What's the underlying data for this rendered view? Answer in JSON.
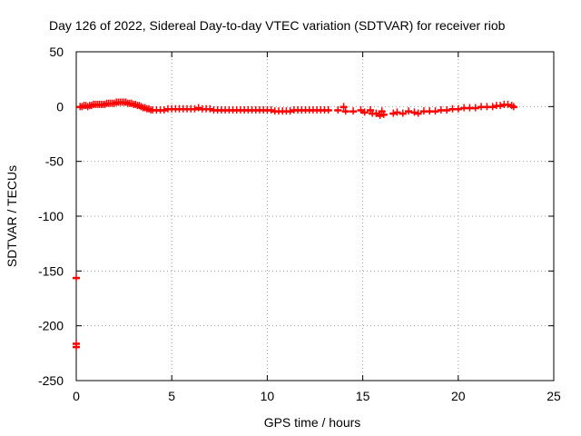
{
  "chart_data": {
    "type": "scatter",
    "title": "Day 126 of 2022, Sidereal Day-to-day VTEC variation (SDTVAR) for receiver riob",
    "xlabel": "GPS time / hours",
    "ylabel": "SDTVAR / TECUs",
    "xlim": [
      0,
      25
    ],
    "ylim": [
      -250,
      50
    ],
    "xticks": [
      0,
      5,
      10,
      15,
      20,
      25
    ],
    "yticks": [
      -250,
      -200,
      -150,
      -100,
      -50,
      0,
      50
    ],
    "xtick_labels": [
      "0",
      "5",
      "10",
      "15",
      "20",
      "25"
    ],
    "ytick_labels": [
      "-250",
      "-200",
      "-150",
      "-100",
      "-50",
      "0",
      "50"
    ],
    "grid": true,
    "marker": "plus",
    "color": "#ff0000",
    "series": [
      {
        "values_note_free": true,
        "points": [
          [
            0.0,
            -156
          ],
          [
            0.0,
            -216
          ],
          [
            0.0,
            -219
          ],
          [
            0.2,
            0
          ],
          [
            0.3,
            0
          ],
          [
            0.4,
            1
          ],
          [
            0.5,
            1
          ],
          [
            0.6,
            0
          ],
          [
            0.7,
            1
          ],
          [
            0.8,
            1
          ],
          [
            0.9,
            2
          ],
          [
            1.0,
            2
          ],
          [
            1.1,
            2
          ],
          [
            1.2,
            2
          ],
          [
            1.3,
            2
          ],
          [
            1.4,
            2
          ],
          [
            1.5,
            2
          ],
          [
            1.6,
            3
          ],
          [
            1.7,
            3
          ],
          [
            1.8,
            3
          ],
          [
            1.9,
            3
          ],
          [
            2.0,
            3
          ],
          [
            2.1,
            4
          ],
          [
            2.2,
            4
          ],
          [
            2.3,
            4
          ],
          [
            2.4,
            4
          ],
          [
            2.5,
            4
          ],
          [
            2.6,
            4
          ],
          [
            2.7,
            3
          ],
          [
            2.8,
            3
          ],
          [
            2.9,
            3
          ],
          [
            3.0,
            2
          ],
          [
            3.1,
            2
          ],
          [
            3.2,
            1
          ],
          [
            3.3,
            1
          ],
          [
            3.4,
            0
          ],
          [
            3.5,
            -1
          ],
          [
            3.6,
            -1
          ],
          [
            3.7,
            -2
          ],
          [
            3.8,
            -2
          ],
          [
            3.9,
            -3
          ],
          [
            4.0,
            -3
          ],
          [
            4.2,
            -3
          ],
          [
            4.4,
            -3
          ],
          [
            4.6,
            -3
          ],
          [
            4.8,
            -2
          ],
          [
            5.0,
            -2
          ],
          [
            5.2,
            -2
          ],
          [
            5.4,
            -2
          ],
          [
            5.6,
            -2
          ],
          [
            5.8,
            -2
          ],
          [
            6.0,
            -2
          ],
          [
            6.2,
            -2
          ],
          [
            6.4,
            -1
          ],
          [
            6.6,
            -2
          ],
          [
            6.8,
            -2
          ],
          [
            7.0,
            -2
          ],
          [
            7.2,
            -3
          ],
          [
            7.4,
            -3
          ],
          [
            7.6,
            -3
          ],
          [
            7.8,
            -3
          ],
          [
            8.0,
            -3
          ],
          [
            8.2,
            -3
          ],
          [
            8.4,
            -3
          ],
          [
            8.6,
            -3
          ],
          [
            8.8,
            -3
          ],
          [
            9.0,
            -3
          ],
          [
            9.2,
            -3
          ],
          [
            9.4,
            -3
          ],
          [
            9.6,
            -3
          ],
          [
            9.8,
            -3
          ],
          [
            10.0,
            -3
          ],
          [
            10.2,
            -3
          ],
          [
            10.4,
            -4
          ],
          [
            10.6,
            -4
          ],
          [
            10.8,
            -4
          ],
          [
            11.0,
            -4
          ],
          [
            11.2,
            -4
          ],
          [
            11.4,
            -3
          ],
          [
            11.6,
            -3
          ],
          [
            11.8,
            -3
          ],
          [
            12.0,
            -3
          ],
          [
            12.2,
            -3
          ],
          [
            12.4,
            -3
          ],
          [
            12.6,
            -3
          ],
          [
            12.8,
            -3
          ],
          [
            13.0,
            -3
          ],
          [
            13.2,
            -3
          ],
          [
            13.7,
            -3
          ],
          [
            14.0,
            0
          ],
          [
            14.1,
            -4
          ],
          [
            14.5,
            -4
          ],
          [
            14.9,
            -3
          ],
          [
            15.1,
            -5
          ],
          [
            15.4,
            -3
          ],
          [
            15.5,
            -6
          ],
          [
            15.7,
            -6
          ],
          [
            15.9,
            -8
          ],
          [
            16.1,
            -7
          ],
          [
            16.0,
            -4
          ],
          [
            16.6,
            -6
          ],
          [
            16.8,
            -5
          ],
          [
            17.1,
            -6
          ],
          [
            17.4,
            -4
          ],
          [
            17.7,
            -5
          ],
          [
            17.9,
            -6
          ],
          [
            18.2,
            -4
          ],
          [
            18.5,
            -4
          ],
          [
            18.8,
            -4
          ],
          [
            19.1,
            -3
          ],
          [
            19.4,
            -3
          ],
          [
            19.7,
            -2
          ],
          [
            20.0,
            -2
          ],
          [
            20.3,
            -1
          ],
          [
            20.6,
            -1
          ],
          [
            20.9,
            -1
          ],
          [
            21.2,
            0
          ],
          [
            21.5,
            0
          ],
          [
            21.8,
            0
          ],
          [
            22.0,
            1
          ],
          [
            22.2,
            1
          ],
          [
            22.4,
            2
          ],
          [
            22.6,
            2
          ],
          [
            22.8,
            1
          ],
          [
            22.9,
            0
          ]
        ]
      }
    ]
  }
}
